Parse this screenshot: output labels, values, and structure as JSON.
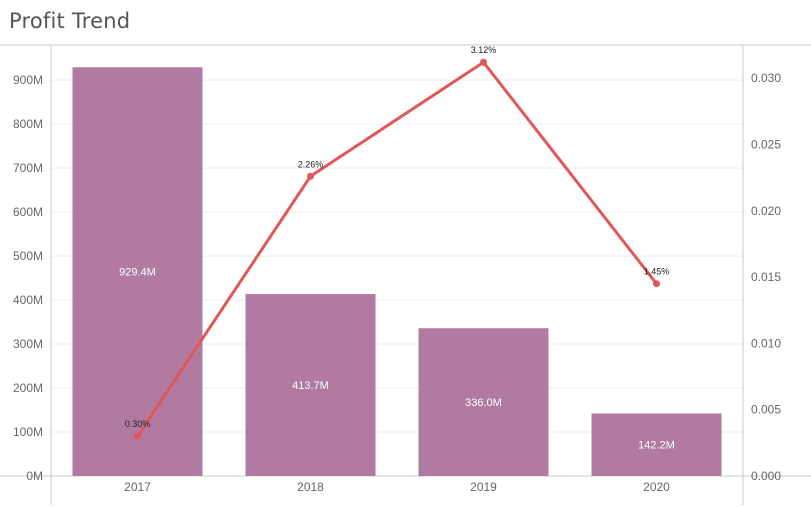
{
  "header": {
    "title": "Profit Trend"
  },
  "chart_data": {
    "type": "bar",
    "title": "Profit Trend",
    "categories": [
      "2017",
      "2018",
      "2019",
      "2020"
    ],
    "series": [
      {
        "type": "bar",
        "axis": "left",
        "values": [
          929.4,
          413.7,
          336.0,
          142.2
        ],
        "value_labels": [
          "929.4M",
          "413.7M",
          "336.0M",
          "142.2M"
        ],
        "color": "#b07aa1"
      },
      {
        "type": "line",
        "axis": "right",
        "values": [
          0.003,
          0.0226,
          0.0312,
          0.0145
        ],
        "value_labels": [
          "0.30%",
          "2.26%",
          "3.12%",
          "1.45%"
        ],
        "color": "#e15759"
      }
    ],
    "y_left": {
      "ylim": [
        0,
        980
      ],
      "ticks": [
        0,
        100,
        200,
        300,
        400,
        500,
        600,
        700,
        800,
        900
      ],
      "tick_labels": [
        "0M",
        "100M",
        "200M",
        "300M",
        "400M",
        "500M",
        "600M",
        "700M",
        "800M",
        "900M"
      ]
    },
    "y_right": {
      "ylim": [
        0,
        0.0325
      ],
      "ticks": [
        0,
        0.005,
        0.01,
        0.015,
        0.02,
        0.025,
        0.03
      ],
      "tick_labels": [
        "0.000",
        "0.005",
        "0.010",
        "0.015",
        "0.020",
        "0.025",
        "0.030"
      ]
    },
    "xlabel": "",
    "ylabel": "",
    "grid": true,
    "legend": "none"
  }
}
